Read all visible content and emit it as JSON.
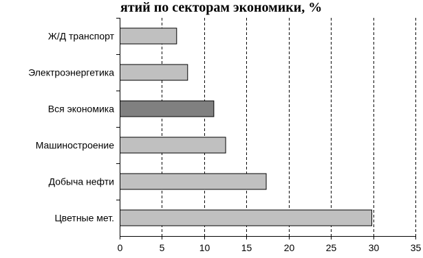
{
  "chart_data": {
    "type": "bar",
    "orientation": "horizontal",
    "title": "ятий по секторам экономики, %",
    "categories": [
      "Ж/Д транспорт",
      "Электроэнергетика",
      "Вся экономика",
      "Машиностроение",
      "Добыча нефти",
      "Цветные мет."
    ],
    "values": [
      6.7,
      8.0,
      11.1,
      12.5,
      17.3,
      29.8
    ],
    "xlim": [
      0,
      35
    ],
    "xticks": [
      "0",
      "5",
      "10",
      "15",
      "20",
      "25",
      "30",
      "35"
    ],
    "xlabel": "",
    "ylabel": "",
    "grid": "vertical-dashed",
    "legend": "none",
    "colors": {
      "bar": "#c0c0c0",
      "highlight_bar": "#808080",
      "highlight_category": "Вся экономика",
      "outline": "#000000"
    }
  }
}
